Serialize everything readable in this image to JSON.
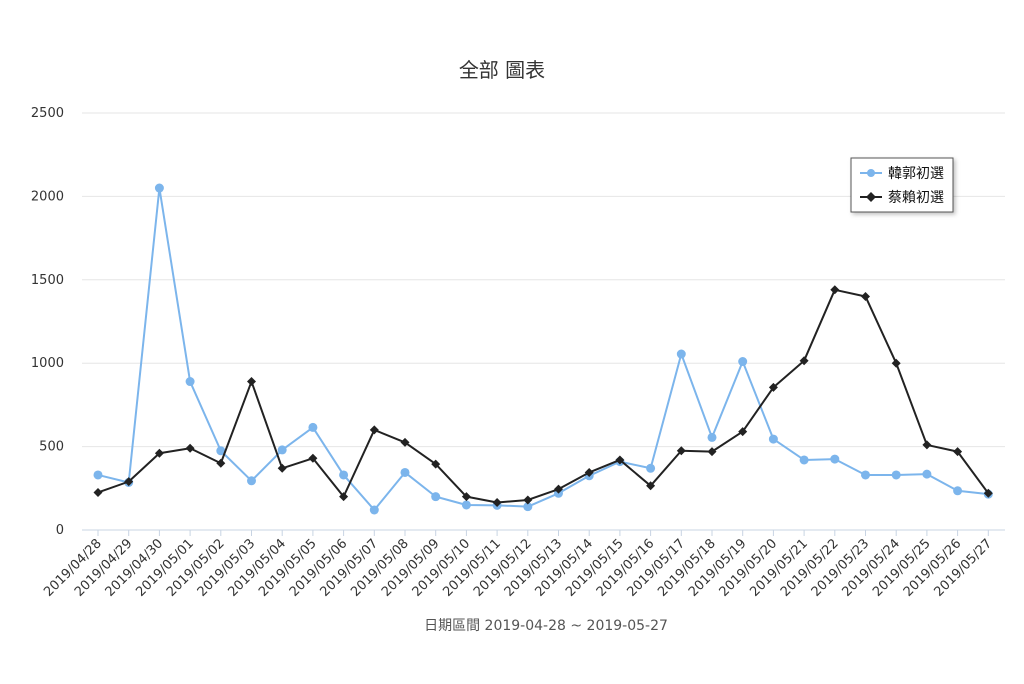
{
  "chart_data": {
    "type": "line",
    "title": "全部 圖表",
    "xlabel": "日期區間 2019-04-28 ~ 2019-05-27",
    "ylabel": "",
    "ylim": [
      0,
      2500
    ],
    "yticks": [
      0,
      500,
      1000,
      1500,
      2000,
      2500
    ],
    "grid": true,
    "legend_position": "top-right",
    "categories": [
      "2019/04/28",
      "2019/04/29",
      "2019/04/30",
      "2019/05/01",
      "2019/05/02",
      "2019/05/03",
      "2019/05/04",
      "2019/05/05",
      "2019/05/06",
      "2019/05/07",
      "2019/05/08",
      "2019/05/09",
      "2019/05/10",
      "2019/05/11",
      "2019/05/12",
      "2019/05/13",
      "2019/05/14",
      "2019/05/15",
      "2019/05/16",
      "2019/05/17",
      "2019/05/18",
      "2019/05/19",
      "2019/05/20",
      "2019/05/21",
      "2019/05/22",
      "2019/05/23",
      "2019/05/24",
      "2019/05/25",
      "2019/05/26",
      "2019/05/27"
    ],
    "series": [
      {
        "name": "韓郭初選",
        "color": "#7cb5ec",
        "marker": "circle",
        "values": [
          330,
          285,
          2050,
          890,
          475,
          295,
          480,
          615,
          330,
          120,
          345,
          200,
          150,
          148,
          140,
          220,
          325,
          410,
          370,
          1055,
          555,
          1010,
          545,
          420,
          425,
          330,
          330,
          335,
          235,
          215
        ]
      },
      {
        "name": "蔡賴初選",
        "color": "#222222",
        "marker": "diamond",
        "values": [
          225,
          290,
          460,
          490,
          400,
          890,
          370,
          430,
          200,
          600,
          525,
          395,
          200,
          165,
          180,
          245,
          345,
          420,
          265,
          475,
          470,
          590,
          855,
          1015,
          1440,
          1400,
          1000,
          510,
          470,
          220
        ]
      }
    ]
  }
}
